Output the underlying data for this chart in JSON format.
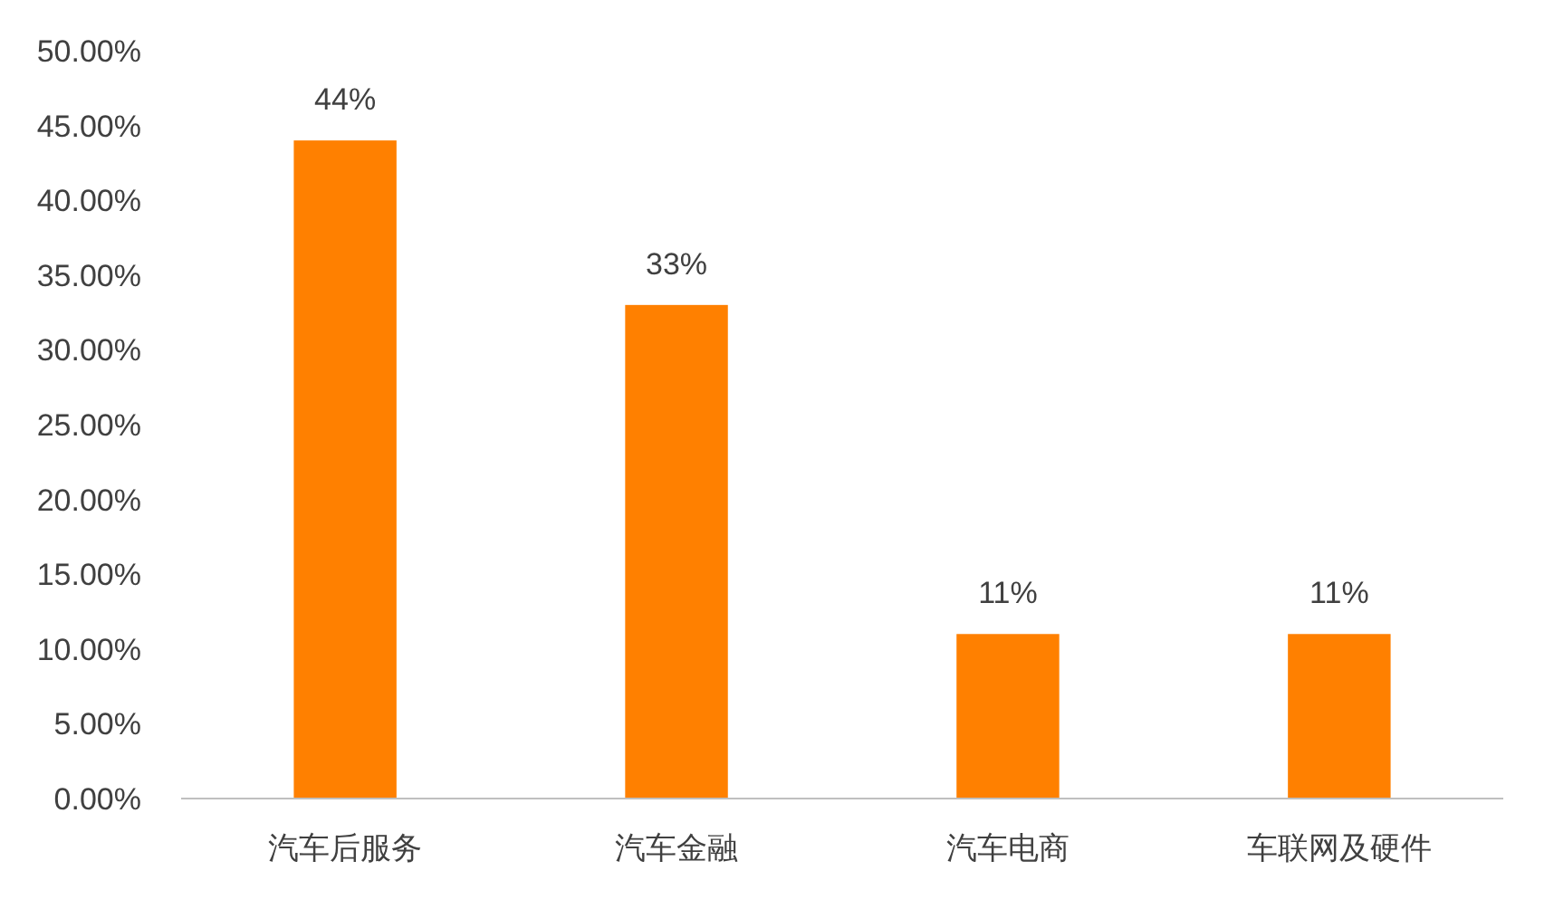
{
  "chart_data": {
    "type": "bar",
    "categories": [
      "汽车后服务",
      "汽车金融",
      "汽车电商",
      "车联网及硬件"
    ],
    "values": [
      44,
      33,
      11,
      11
    ],
    "value_labels": [
      "44%",
      "33%",
      "11%",
      "11%"
    ],
    "color": "#ff8000",
    "ylim": [
      0,
      50
    ],
    "yticks": [
      {
        "value": 0,
        "label": "0.00%"
      },
      {
        "value": 5,
        "label": "5.00%"
      },
      {
        "value": 10,
        "label": "10.00%"
      },
      {
        "value": 15,
        "label": "15.00%"
      },
      {
        "value": 20,
        "label": "20.00%"
      },
      {
        "value": 25,
        "label": "25.00%"
      },
      {
        "value": 30,
        "label": "30.00%"
      },
      {
        "value": 35,
        "label": "35.00%"
      },
      {
        "value": 40,
        "label": "40.00%"
      },
      {
        "value": 45,
        "label": "45.00%"
      },
      {
        "value": 50,
        "label": "50.00%"
      }
    ],
    "grid": false
  }
}
